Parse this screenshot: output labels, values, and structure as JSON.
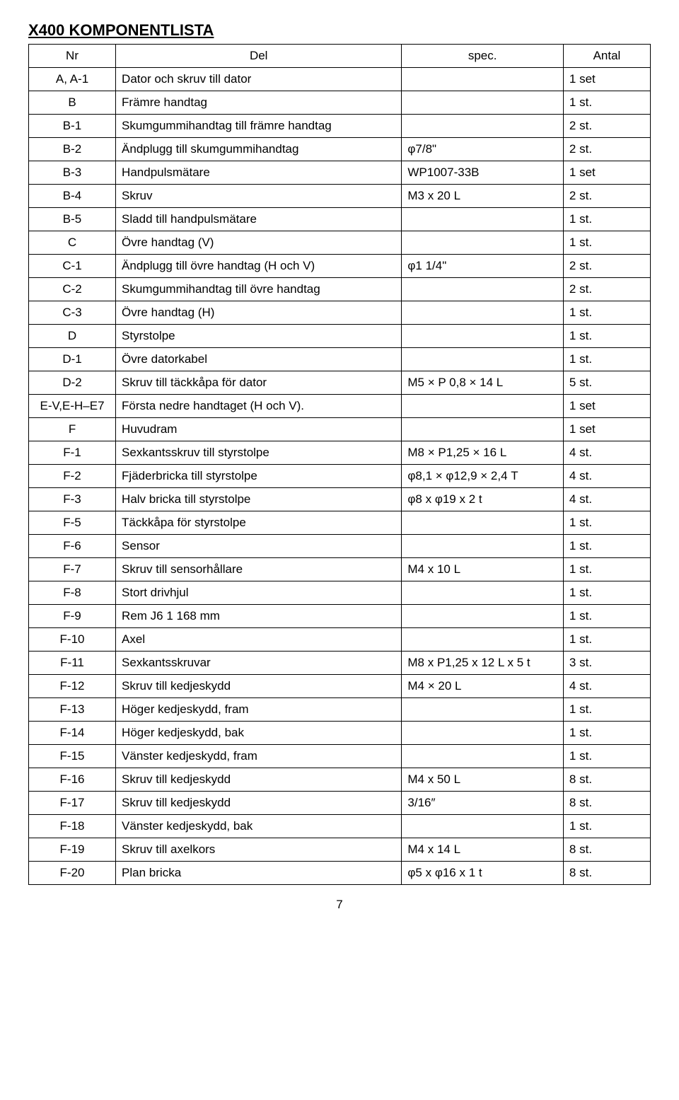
{
  "title": "X400 KOMPONENTLISTA",
  "headers": {
    "nr": "Nr",
    "del": "Del",
    "spec": "spec.",
    "antal": "Antal"
  },
  "page_number": "7",
  "rows": [
    {
      "nr": "A, A-1",
      "del": "Dator och skruv till dator",
      "spec": "",
      "antal": "1 set"
    },
    {
      "nr": "B",
      "del": "Främre handtag",
      "spec": "",
      "antal": "1 st."
    },
    {
      "nr": "B-1",
      "del": "Skumgummihandtag till främre handtag",
      "spec": "",
      "antal": "2 st."
    },
    {
      "nr": "B-2",
      "del": "Ändplugg till skumgummihandtag",
      "spec": "φ7/8\"",
      "antal": "2 st."
    },
    {
      "nr": "B-3",
      "del": "Handpulsmätare",
      "spec": "WP1007-33B",
      "antal": "1 set"
    },
    {
      "nr": "B-4",
      "del": "Skruv",
      "spec": "M3 x 20 L",
      "antal": "2 st."
    },
    {
      "nr": "B-5",
      "del": "Sladd till handpulsmätare",
      "spec": "",
      "antal": "1 st."
    },
    {
      "nr": "C",
      "del": "Övre handtag (V)",
      "spec": "",
      "antal": "1 st."
    },
    {
      "nr": "C-1",
      "del": "Ändplugg till övre handtag (H och V)",
      "spec": "φ1 1/4\"",
      "antal": "2 st."
    },
    {
      "nr": "C-2",
      "del": "Skumgummihandtag till övre handtag",
      "spec": "",
      "antal": "2 st."
    },
    {
      "nr": "C-3",
      "del": "Övre handtag (H)",
      "spec": "",
      "antal": "1 st."
    },
    {
      "nr": "D",
      "del": "Styrstolpe",
      "spec": "",
      "antal": "1 st."
    },
    {
      "nr": "D-1",
      "del": "Övre datorkabel",
      "spec": "",
      "antal": "1 st."
    },
    {
      "nr": "D-2",
      "del": "Skruv till täckkåpa för dator",
      "spec": "M5 × P 0,8 × 14 L",
      "antal": "5 st."
    },
    {
      "nr": "E-V,E-H–E7",
      "del": "Första nedre handtaget (H och V).",
      "spec": "",
      "antal": "1 set"
    },
    {
      "nr": "F",
      "del": "Huvudram",
      "spec": "",
      "antal": "1 set"
    },
    {
      "nr": "F-1",
      "del": "Sexkantsskruv till styrstolpe",
      "spec": "M8 × P1,25 × 16 L",
      "antal": "4 st."
    },
    {
      "nr": "F-2",
      "del": "Fjäderbricka till styrstolpe",
      "spec": "φ8,1 × φ12,9 × 2,4 T",
      "antal": "4 st."
    },
    {
      "nr": "F-3",
      "del": "Halv bricka till styrstolpe",
      "spec": "φ8 x φ19 x 2 t",
      "antal": "4 st."
    },
    {
      "nr": "F-5",
      "del": "Täckkåpa för styrstolpe",
      "spec": "",
      "antal": "1 st."
    },
    {
      "nr": "F-6",
      "del": "Sensor",
      "spec": "",
      "antal": "1 st."
    },
    {
      "nr": "F-7",
      "del": "Skruv till sensorhållare",
      "spec": "M4 x 10 L",
      "antal": "1 st."
    },
    {
      "nr": "F-8",
      "del": "Stort drivhjul",
      "spec": "",
      "antal": "1 st."
    },
    {
      "nr": "F-9",
      "del": "Rem J6 1 168 mm",
      "spec": "",
      "antal": "1 st."
    },
    {
      "nr": "F-10",
      "del": "Axel",
      "spec": "",
      "antal": "1 st."
    },
    {
      "nr": "F-11",
      "del": "Sexkantsskruvar",
      "spec": "M8 x P1,25 x 12 L x 5 t",
      "antal": "3 st."
    },
    {
      "nr": "F-12",
      "del": "Skruv till kedjeskydd",
      "spec": "M4 × 20 L",
      "antal": "4 st."
    },
    {
      "nr": "F-13",
      "del": "Höger kedjeskydd, fram",
      "spec": "",
      "antal": "1 st."
    },
    {
      "nr": "F-14",
      "del": "Höger kedjeskydd, bak",
      "spec": "",
      "antal": "1 st."
    },
    {
      "nr": "F-15",
      "del": "Vänster kedjeskydd, fram",
      "spec": "",
      "antal": "1 st."
    },
    {
      "nr": "F-16",
      "del": "Skruv till kedjeskydd",
      "spec": "M4 x 50 L",
      "antal": "8 st."
    },
    {
      "nr": "F-17",
      "del": "Skruv till kedjeskydd",
      "spec": "3/16″",
      "antal": "8 st."
    },
    {
      "nr": "F-18",
      "del": "Vänster kedjeskydd, bak",
      "spec": "",
      "antal": "1 st."
    },
    {
      "nr": "F-19",
      "del": "Skruv till axelkors",
      "spec": "M4 x 14 L",
      "antal": "8 st."
    },
    {
      "nr": "F-20",
      "del": "Plan bricka",
      "spec": "φ5 x φ16 x 1 t",
      "antal": "8 st."
    }
  ]
}
